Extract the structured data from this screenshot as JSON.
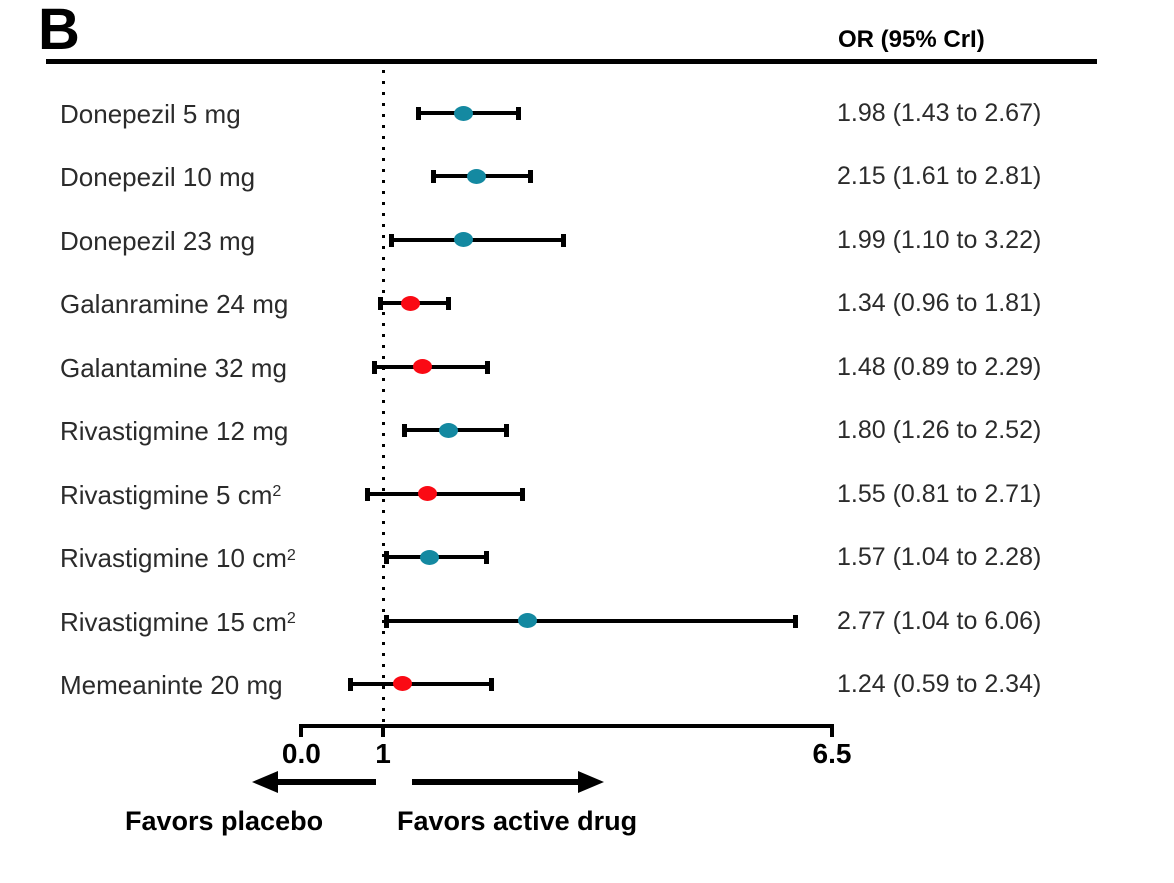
{
  "chart_data": {
    "type": "scatter",
    "subtype": "forest_plot",
    "title": "B",
    "value_column_header": "OR (95% CrI)",
    "xlim": [
      0.0,
      6.5
    ],
    "x_ticks": [
      {
        "label": "0.0",
        "value": 0.0
      },
      {
        "label": "1",
        "value": 1.0
      },
      {
        "label": "6.5",
        "value": 6.5
      }
    ],
    "reference_line_x": 1.0,
    "grid": false,
    "marker_colors": {
      "teal": "#1489A1",
      "red": "#FA0A14"
    },
    "rows": [
      {
        "label": "Donepezil 5 mg",
        "label_sup": "",
        "or": 1.98,
        "ci_lower": 1.43,
        "ci_upper": 2.67,
        "display": "1.98 (1.43 to 2.67)",
        "marker": "teal"
      },
      {
        "label": "Donepezil 10 mg",
        "label_sup": "",
        "or": 2.15,
        "ci_lower": 1.61,
        "ci_upper": 2.81,
        "display": "2.15 (1.61 to 2.81)",
        "marker": "teal"
      },
      {
        "label": "Donepezil 23 mg",
        "label_sup": "",
        "or": 1.99,
        "ci_lower": 1.1,
        "ci_upper": 3.22,
        "display": "1.99 (1.10 to 3.22)",
        "marker": "teal"
      },
      {
        "label": "Galanramine 24 mg",
        "label_sup": "",
        "or": 1.34,
        "ci_lower": 0.96,
        "ci_upper": 1.81,
        "display": "1.34 (0.96 to 1.81)",
        "marker": "red"
      },
      {
        "label": "Galantamine 32 mg",
        "label_sup": "",
        "or": 1.48,
        "ci_lower": 0.89,
        "ci_upper": 2.29,
        "display": "1.48 (0.89 to 2.29)",
        "marker": "red"
      },
      {
        "label": "Rivastigmine 12 mg",
        "label_sup": "",
        "or": 1.8,
        "ci_lower": 1.26,
        "ci_upper": 2.52,
        "display": "1.80 (1.26 to 2.52)",
        "marker": "teal"
      },
      {
        "label": "Rivastigmine 5 cm",
        "label_sup": "2",
        "or": 1.55,
        "ci_lower": 0.81,
        "ci_upper": 2.71,
        "display": "1.55 (0.81 to 2.71)",
        "marker": "red"
      },
      {
        "label": "Rivastigmine 10 cm",
        "label_sup": "2",
        "or": 1.57,
        "ci_lower": 1.04,
        "ci_upper": 2.28,
        "display": "1.57 (1.04 to 2.28)",
        "marker": "teal"
      },
      {
        "label": "Rivastigmine 15 cm",
        "label_sup": "2",
        "or": 2.77,
        "ci_lower": 1.04,
        "ci_upper": 6.06,
        "display": "2.77 (1.04 to 6.06)",
        "marker": "teal"
      },
      {
        "label": "Memeaninte 20 mg",
        "label_sup": "",
        "or": 1.24,
        "ci_lower": 0.59,
        "ci_upper": 2.34,
        "display": "1.24 (0.59 to 2.34)",
        "marker": "red"
      }
    ],
    "annotations": {
      "left_arrow_label": "Favors placebo",
      "right_arrow_label": "Favors active drug"
    },
    "legend_position": "none"
  }
}
